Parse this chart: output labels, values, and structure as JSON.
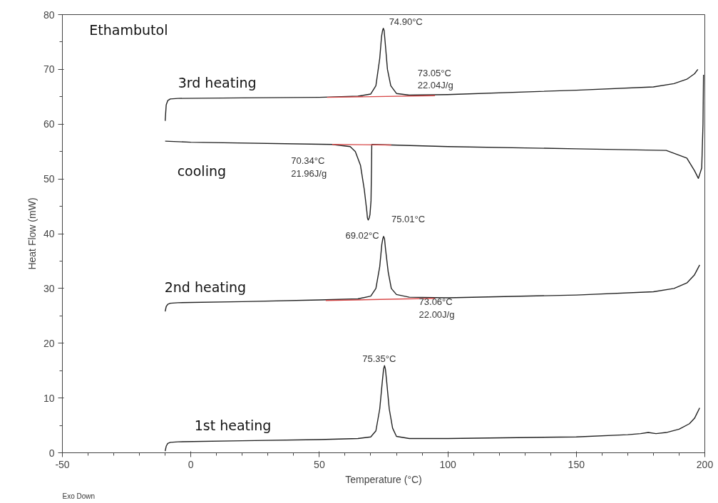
{
  "chart_data": {
    "type": "line",
    "xlabel": "Temperature (°C)",
    "ylabel": "Heat Flow (mW)",
    "xlim": [
      -50,
      200
    ],
    "ylim": [
      0,
      80
    ],
    "xticks": [
      -50,
      {
        "value": -40,
        "label": null
      },
      {
        "value": -30,
        "label": null
      },
      {
        "value": -20,
        "label": null
      },
      {
        "value": -10,
        "label": null
      },
      0,
      {
        "value": 10,
        "label": null
      },
      {
        "value": 20,
        "label": null
      },
      {
        "value": 30,
        "label": null
      },
      {
        "value": 40,
        "label": null
      },
      50,
      {
        "value": 60,
        "label": null
      },
      {
        "value": 70,
        "label": null
      },
      {
        "value": 80,
        "label": null
      },
      {
        "value": 90,
        "label": null
      },
      100,
      {
        "value": 110,
        "label": null
      },
      {
        "value": 120,
        "label": null
      },
      {
        "value": 130,
        "label": null
      },
      {
        "value": 140,
        "label": null
      },
      150,
      {
        "value": 160,
        "label": null
      },
      {
        "value": 170,
        "label": null
      },
      {
        "value": 180,
        "label": null
      },
      {
        "value": 190,
        "label": null
      },
      200
    ],
    "yticks": [
      0,
      {
        "value": 5,
        "label": null
      },
      10,
      {
        "value": 15,
        "label": null
      },
      20,
      {
        "value": 25,
        "label": null
      },
      30,
      {
        "value": 35,
        "label": null
      },
      40,
      {
        "value": 45,
        "label": null
      },
      50,
      {
        "value": 55,
        "label": null
      },
      60,
      {
        "value": 65,
        "label": null
      },
      70,
      {
        "value": 75,
        "label": null
      },
      80
    ],
    "grid": false,
    "marker": "none",
    "line_style": "solid",
    "series": [
      {
        "name": "1st heating",
        "color": "#222222",
        "x": [
          -10,
          -9.6,
          -9,
          -8,
          -5,
          20,
          50,
          65,
          70,
          72,
          73.5,
          74.5,
          75.0,
          75.35,
          75.7,
          76.2,
          77.2,
          78.5,
          80,
          85,
          100,
          150,
          170,
          175,
          178,
          181,
          185,
          190,
          194,
          196,
          198
        ],
        "values": [
          0.3,
          1.2,
          1.7,
          1.9,
          2.0,
          2.2,
          2.4,
          2.6,
          2.9,
          4,
          8,
          13,
          15.3,
          15.9,
          15.3,
          13,
          8,
          4.5,
          3,
          2.6,
          2.6,
          2.9,
          3.3,
          3.5,
          3.7,
          3.5,
          3.7,
          4.3,
          5.3,
          6.3,
          8.2
        ]
      },
      {
        "name": "2nd heating",
        "color": "#222222",
        "x": [
          -10,
          -9.6,
          -9,
          -8,
          -5,
          20,
          50,
          65,
          70,
          72,
          73.5,
          74.3,
          74.7,
          75.01,
          75.35,
          75.8,
          76.8,
          78,
          80,
          85,
          100,
          150,
          180,
          188,
          193,
          196,
          198
        ],
        "values": [
          25.8,
          26.7,
          27.1,
          27.3,
          27.4,
          27.6,
          27.9,
          28.1,
          28.6,
          30,
          34,
          38,
          39.1,
          39.5,
          39.1,
          37,
          33,
          30,
          28.9,
          28.4,
          28.3,
          28.8,
          29.4,
          30,
          31,
          32.5,
          34.3
        ]
      },
      {
        "name": "cooling",
        "color": "#222222",
        "x": [
          199.5,
          199.3,
          198.8,
          197.5,
          196,
          193,
          185,
          150,
          100,
          78,
          70.4,
          70.3,
          70.1,
          69.7,
          69.35,
          69.02,
          68.7,
          68.5,
          67.5,
          66,
          64,
          62,
          55,
          0,
          -10
        ],
        "values": [
          69,
          60,
          52,
          50.1,
          51.5,
          53.8,
          55.2,
          55.5,
          55.9,
          56.2,
          56.3,
          52,
          46,
          43.5,
          42.8,
          42.5,
          42.9,
          44,
          48,
          52.5,
          55,
          55.9,
          56.3,
          56.7,
          56.9
        ]
      },
      {
        "name": "3rd heating",
        "color": "#222222",
        "x": [
          -10,
          -9.6,
          -9,
          -8,
          -5,
          20,
          50,
          65,
          70,
          72,
          73.5,
          74.2,
          74.6,
          74.9,
          75.2,
          75.6,
          76.5,
          77.8,
          80,
          85,
          100,
          150,
          180,
          188,
          193,
          196,
          197.3
        ],
        "values": [
          60.6,
          63.5,
          64.3,
          64.6,
          64.7,
          64.8,
          64.9,
          65.1,
          65.5,
          67,
          72,
          76,
          77.1,
          77.5,
          77.1,
          75,
          70,
          67,
          65.6,
          65.3,
          65.4,
          66.2,
          66.8,
          67.4,
          68.2,
          69.2,
          70
        ]
      },
      {
        "type": "line",
        "color": "#d84a4a",
        "x": [
          53,
          95
        ],
        "values": [
          64.9,
          65.2
        ]
      },
      {
        "type": "line",
        "color": "#d84a4a",
        "x": [
          55,
          78
        ],
        "values": [
          56.3,
          56.2
        ]
      },
      {
        "type": "line",
        "color": "#d84a4a",
        "x": [
          52.5,
          95
        ],
        "values": [
          27.8,
          28.2
        ]
      }
    ],
    "annotations": [
      "Ethambutol",
      {
        "text": "74.90°C",
        "x": 74.9,
        "y": 77.5
      },
      "73.05°C\n22.04J/g",
      "70.34°C\n21.96J/g",
      {
        "text": "69.02°C",
        "x": 69.02,
        "y": 42.5
      },
      {
        "text": "75.01°C",
        "x": 75.01,
        "y": 39.5
      },
      "73.06°C\n22.00J/g",
      {
        "text": "75.35°C",
        "x": 75.35,
        "y": 15.9
      },
      "Exo Down"
    ]
  }
}
